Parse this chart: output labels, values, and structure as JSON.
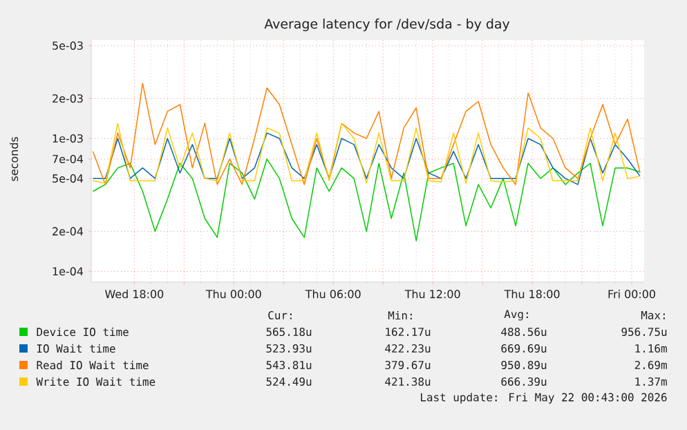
{
  "chart_data": {
    "type": "line",
    "title": "Average latency for /dev/sda - by day",
    "ylabel": "seconds",
    "x": [
      "2026-05-20T15:30",
      "2026-05-20T16:15",
      "2026-05-20T17:00",
      "2026-05-20T17:45",
      "2026-05-20T18:30",
      "2026-05-20T19:15",
      "2026-05-20T20:00",
      "2026-05-20T20:45",
      "2026-05-20T21:30",
      "2026-05-20T22:15",
      "2026-05-20T23:00",
      "2026-05-20T23:45",
      "2026-05-21T00:30",
      "2026-05-21T01:15",
      "2026-05-21T02:00",
      "2026-05-21T02:45",
      "2026-05-21T03:30",
      "2026-05-21T04:15",
      "2026-05-21T05:00",
      "2026-05-21T05:45",
      "2026-05-21T06:30",
      "2026-05-21T07:15",
      "2026-05-21T08:00",
      "2026-05-21T08:45",
      "2026-05-21T09:30",
      "2026-05-21T10:15",
      "2026-05-21T11:00",
      "2026-05-21T11:45",
      "2026-05-21T12:30",
      "2026-05-21T13:15",
      "2026-05-21T14:00",
      "2026-05-21T14:45",
      "2026-05-21T15:30",
      "2026-05-21T16:15",
      "2026-05-21T17:00",
      "2026-05-21T17:45",
      "2026-05-21T18:30",
      "2026-05-21T19:15",
      "2026-05-21T20:00",
      "2026-05-21T20:45",
      "2026-05-21T21:30",
      "2026-05-21T22:15",
      "2026-05-21T23:00",
      "2026-05-21T23:45",
      "2026-05-22T00:30"
    ],
    "series": [
      {
        "name": "Device IO time",
        "color": "#00cc00",
        "values": [
          0.0004,
          0.00045,
          0.0006,
          0.00065,
          0.0004,
          0.0002,
          0.00035,
          0.00065,
          0.0005,
          0.00025,
          0.00018,
          0.00065,
          0.00055,
          0.00035,
          0.0007,
          0.0005,
          0.00025,
          0.00018,
          0.0006,
          0.0004,
          0.0006,
          0.0005,
          0.0002,
          0.00065,
          0.00025,
          0.00055,
          0.00017,
          0.00055,
          0.0006,
          0.00065,
          0.00022,
          0.00045,
          0.0003,
          0.0005,
          0.00022,
          0.00065,
          0.0005,
          0.0006,
          0.00045,
          0.00055,
          0.00065,
          0.00022,
          0.0006,
          0.0006,
          0.00056
        ]
      },
      {
        "name": "IO Wait time",
        "color": "#0066b3",
        "values": [
          0.0005,
          0.0005,
          0.001,
          0.0005,
          0.0006,
          0.0005,
          0.001,
          0.00055,
          0.0009,
          0.0005,
          0.0005,
          0.001,
          0.0005,
          0.0006,
          0.0011,
          0.001,
          0.0006,
          0.0005,
          0.0009,
          0.0005,
          0.001,
          0.0009,
          0.0005,
          0.0009,
          0.0006,
          0.0005,
          0.001,
          0.00055,
          0.0005,
          0.0008,
          0.0005,
          0.0009,
          0.0005,
          0.0005,
          0.0005,
          0.001,
          0.0009,
          0.0006,
          0.0005,
          0.00045,
          0.001,
          0.00055,
          0.0009,
          0.0007,
          0.00052
        ]
      },
      {
        "name": "Read IO Wait time",
        "color": "#ff8000",
        "values": [
          0.0008,
          0.00045,
          0.0011,
          0.0006,
          0.0026,
          0.0009,
          0.0016,
          0.0018,
          0.0006,
          0.0013,
          0.00045,
          0.0007,
          0.00045,
          0.001,
          0.0024,
          0.0018,
          0.0009,
          0.00045,
          0.001,
          0.0005,
          0.0013,
          0.0011,
          0.001,
          0.0016,
          0.0005,
          0.0012,
          0.0017,
          0.0005,
          0.0005,
          0.0009,
          0.0016,
          0.0019,
          0.0009,
          0.0006,
          0.00045,
          0.0022,
          0.0012,
          0.001,
          0.0006,
          0.0005,
          0.001,
          0.0018,
          0.0009,
          0.0014,
          0.00055
        ]
      },
      {
        "name": "Write IO Wait time",
        "color": "#ffcc00",
        "values": [
          0.00048,
          0.00046,
          0.0013,
          0.00048,
          0.00048,
          0.00048,
          0.0012,
          0.0006,
          0.0011,
          0.0005,
          0.00048,
          0.0011,
          0.00048,
          0.00048,
          0.0012,
          0.0011,
          0.00048,
          0.00048,
          0.0011,
          0.00048,
          0.0013,
          0.001,
          0.00046,
          0.0011,
          0.00048,
          0.00048,
          0.0012,
          0.00048,
          0.00047,
          0.0011,
          0.00046,
          0.0011,
          0.00048,
          0.00047,
          0.00048,
          0.0012,
          0.001,
          0.00048,
          0.00048,
          0.00048,
          0.0012,
          0.00048,
          0.0011,
          0.0005,
          0.00052
        ]
      }
    ],
    "log": "y",
    "xlim": [
      "2026-05-20T15:24",
      "2026-05-22T00:45"
    ],
    "ylim": [
      8.3e-05,
      0.0055
    ],
    "xticks": [
      {
        "value": "2026-05-20T18:00",
        "label": "Wed 18:00"
      },
      {
        "value": "2026-05-20T21:00",
        "label": null
      },
      {
        "value": "2026-05-21T00:00",
        "label": "Thu 00:00"
      },
      {
        "value": "2026-05-21T03:00",
        "label": null
      },
      {
        "value": "2026-05-21T06:00",
        "label": "Thu 06:00"
      },
      {
        "value": "2026-05-21T09:00",
        "label": null
      },
      {
        "value": "2026-05-21T12:00",
        "label": "Thu 12:00"
      },
      {
        "value": "2026-05-21T15:00",
        "label": null
      },
      {
        "value": "2026-05-21T18:00",
        "label": "Thu 18:00"
      },
      {
        "value": "2026-05-21T21:00",
        "label": null
      },
      {
        "value": "2026-05-22T00:00",
        "label": "Fri 00:00"
      }
    ],
    "yticks": [
      {
        "value": 0.0001,
        "label": "1e-04"
      },
      {
        "value": 0.0002,
        "label": "2e-04"
      },
      {
        "value": 0.0005,
        "label": "5e-04"
      },
      {
        "value": 0.0007,
        "label": "7e-04"
      },
      {
        "value": 0.001,
        "label": "1e-03"
      },
      {
        "value": 0.002,
        "label": "2e-03"
      },
      {
        "value": 0.005,
        "label": "5e-03"
      }
    ],
    "grid": true,
    "legend": "bottom",
    "annotations": [
      "Cur:",
      "Min:",
      "Avg:",
      "Max:",
      "565.18u",
      "162.17u",
      "488.56u",
      "956.75u",
      "523.93u",
      "422.23u",
      "669.69u",
      "1.16m",
      "543.81u",
      "379.67u",
      "950.89u",
      "2.69m",
      "524.49u",
      "421.38u",
      "666.39u",
      "1.37m",
      "Last update: Fri May 22 00:43:00 2026"
    ]
  }
}
